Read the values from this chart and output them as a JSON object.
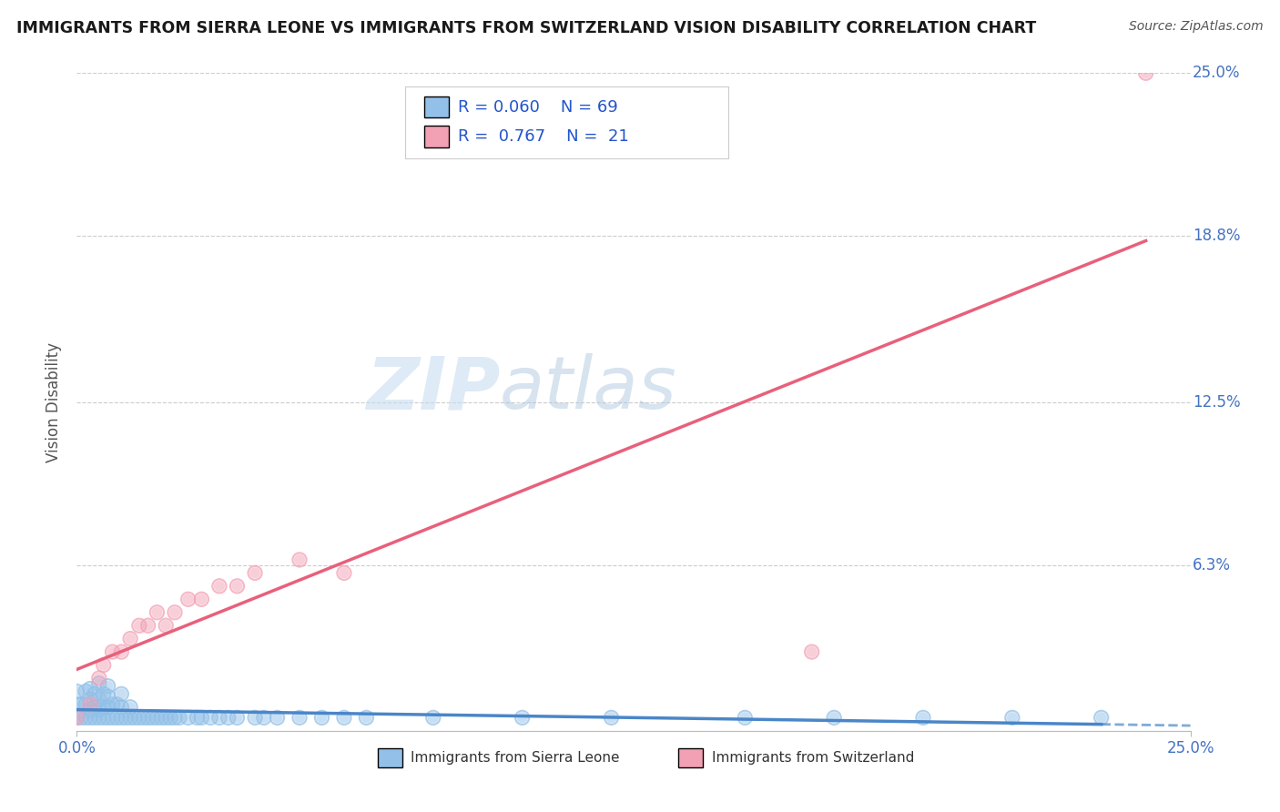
{
  "title": "IMMIGRANTS FROM SIERRA LEONE VS IMMIGRANTS FROM SWITZERLAND VISION DISABILITY CORRELATION CHART",
  "source": "Source: ZipAtlas.com",
  "ylabel": "Vision Disability",
  "xlim": [
    0.0,
    0.25
  ],
  "ylim": [
    0.0,
    0.25
  ],
  "y_ticks": [
    0.0,
    0.063,
    0.125,
    0.188,
    0.25
  ],
  "y_tick_labels": [
    "",
    "6.3%",
    "12.5%",
    "18.8%",
    "25.0%"
  ],
  "watermark_zip": "ZIP",
  "watermark_atlas": "atlas",
  "sierra_leone_color": "#92c0e8",
  "switzerland_color": "#f2a0b4",
  "sl_line_color": "#4a86c8",
  "sw_line_color": "#e8607a",
  "sierra_leone_R": 0.06,
  "sierra_leone_N": 69,
  "switzerland_R": 0.767,
  "switzerland_N": 21,
  "legend_label_sl": "Immigrants from Sierra Leone",
  "legend_label_sw": "Immigrants from Switzerland",
  "sl_x": [
    0.0,
    0.0,
    0.0,
    0.001,
    0.001,
    0.002,
    0.002,
    0.002,
    0.003,
    0.003,
    0.003,
    0.003,
    0.004,
    0.004,
    0.004,
    0.005,
    0.005,
    0.005,
    0.005,
    0.006,
    0.006,
    0.006,
    0.007,
    0.007,
    0.007,
    0.007,
    0.008,
    0.008,
    0.009,
    0.009,
    0.01,
    0.01,
    0.01,
    0.011,
    0.012,
    0.012,
    0.013,
    0.014,
    0.015,
    0.016,
    0.017,
    0.018,
    0.019,
    0.02,
    0.021,
    0.022,
    0.023,
    0.025,
    0.027,
    0.028,
    0.03,
    0.032,
    0.034,
    0.036,
    0.04,
    0.042,
    0.045,
    0.05,
    0.055,
    0.06,
    0.065,
    0.08,
    0.1,
    0.12,
    0.15,
    0.17,
    0.19,
    0.21,
    0.23
  ],
  "sl_y": [
    0.005,
    0.01,
    0.015,
    0.005,
    0.01,
    0.005,
    0.01,
    0.015,
    0.005,
    0.008,
    0.012,
    0.016,
    0.005,
    0.009,
    0.014,
    0.005,
    0.008,
    0.012,
    0.018,
    0.005,
    0.009,
    0.014,
    0.005,
    0.009,
    0.013,
    0.017,
    0.005,
    0.01,
    0.005,
    0.01,
    0.005,
    0.009,
    0.014,
    0.005,
    0.005,
    0.009,
    0.005,
    0.005,
    0.005,
    0.005,
    0.005,
    0.005,
    0.005,
    0.005,
    0.005,
    0.005,
    0.005,
    0.005,
    0.005,
    0.005,
    0.005,
    0.005,
    0.005,
    0.005,
    0.005,
    0.005,
    0.005,
    0.005,
    0.005,
    0.005,
    0.005,
    0.005,
    0.005,
    0.005,
    0.005,
    0.005,
    0.005,
    0.005,
    0.005
  ],
  "sw_x": [
    0.0,
    0.003,
    0.005,
    0.006,
    0.008,
    0.01,
    0.012,
    0.014,
    0.016,
    0.018,
    0.02,
    0.022,
    0.025,
    0.028,
    0.032,
    0.036,
    0.04,
    0.05,
    0.06,
    0.165,
    0.24
  ],
  "sw_y": [
    0.005,
    0.01,
    0.02,
    0.025,
    0.03,
    0.03,
    0.035,
    0.04,
    0.04,
    0.045,
    0.04,
    0.045,
    0.05,
    0.05,
    0.055,
    0.055,
    0.06,
    0.065,
    0.06,
    0.03,
    0.25
  ]
}
